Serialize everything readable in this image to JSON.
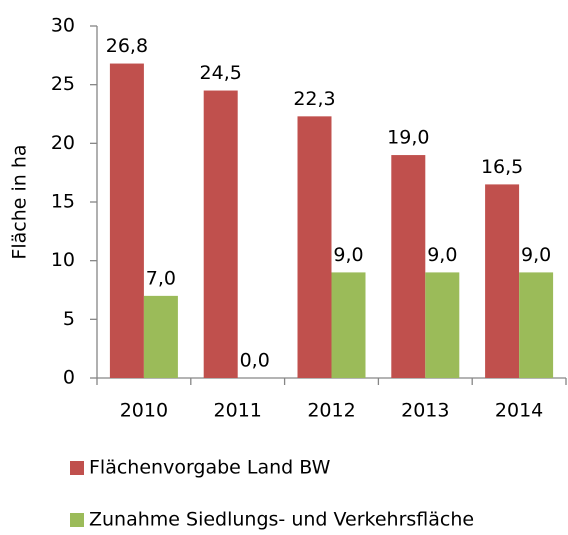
{
  "chart_data": {
    "type": "bar",
    "y_label": "Fläche in ha",
    "categories": [
      "2010",
      "2011",
      "2012",
      "2013",
      "2014"
    ],
    "series": [
      {
        "name": "Flächenvorgabe Land BW",
        "color": "#c0504d",
        "values": [
          26.8,
          24.5,
          22.3,
          19.0,
          16.5
        ],
        "value_labels": [
          "26,8",
          "24,5",
          "22,3",
          "19,0",
          "16,5"
        ]
      },
      {
        "name": "Zunahme Siedlungs- und Verkehrsfläche",
        "color": "#9bbb59",
        "values": [
          7.0,
          0.0,
          9.0,
          9.0,
          9.0
        ],
        "value_labels": [
          "7,0",
          "0,0",
          "9,0",
          "9,0",
          "9,0"
        ]
      }
    ],
    "ylim": [
      0,
      30
    ],
    "yticks": [
      0,
      5,
      10,
      15,
      20,
      25,
      30
    ],
    "legend": "bottom"
  }
}
